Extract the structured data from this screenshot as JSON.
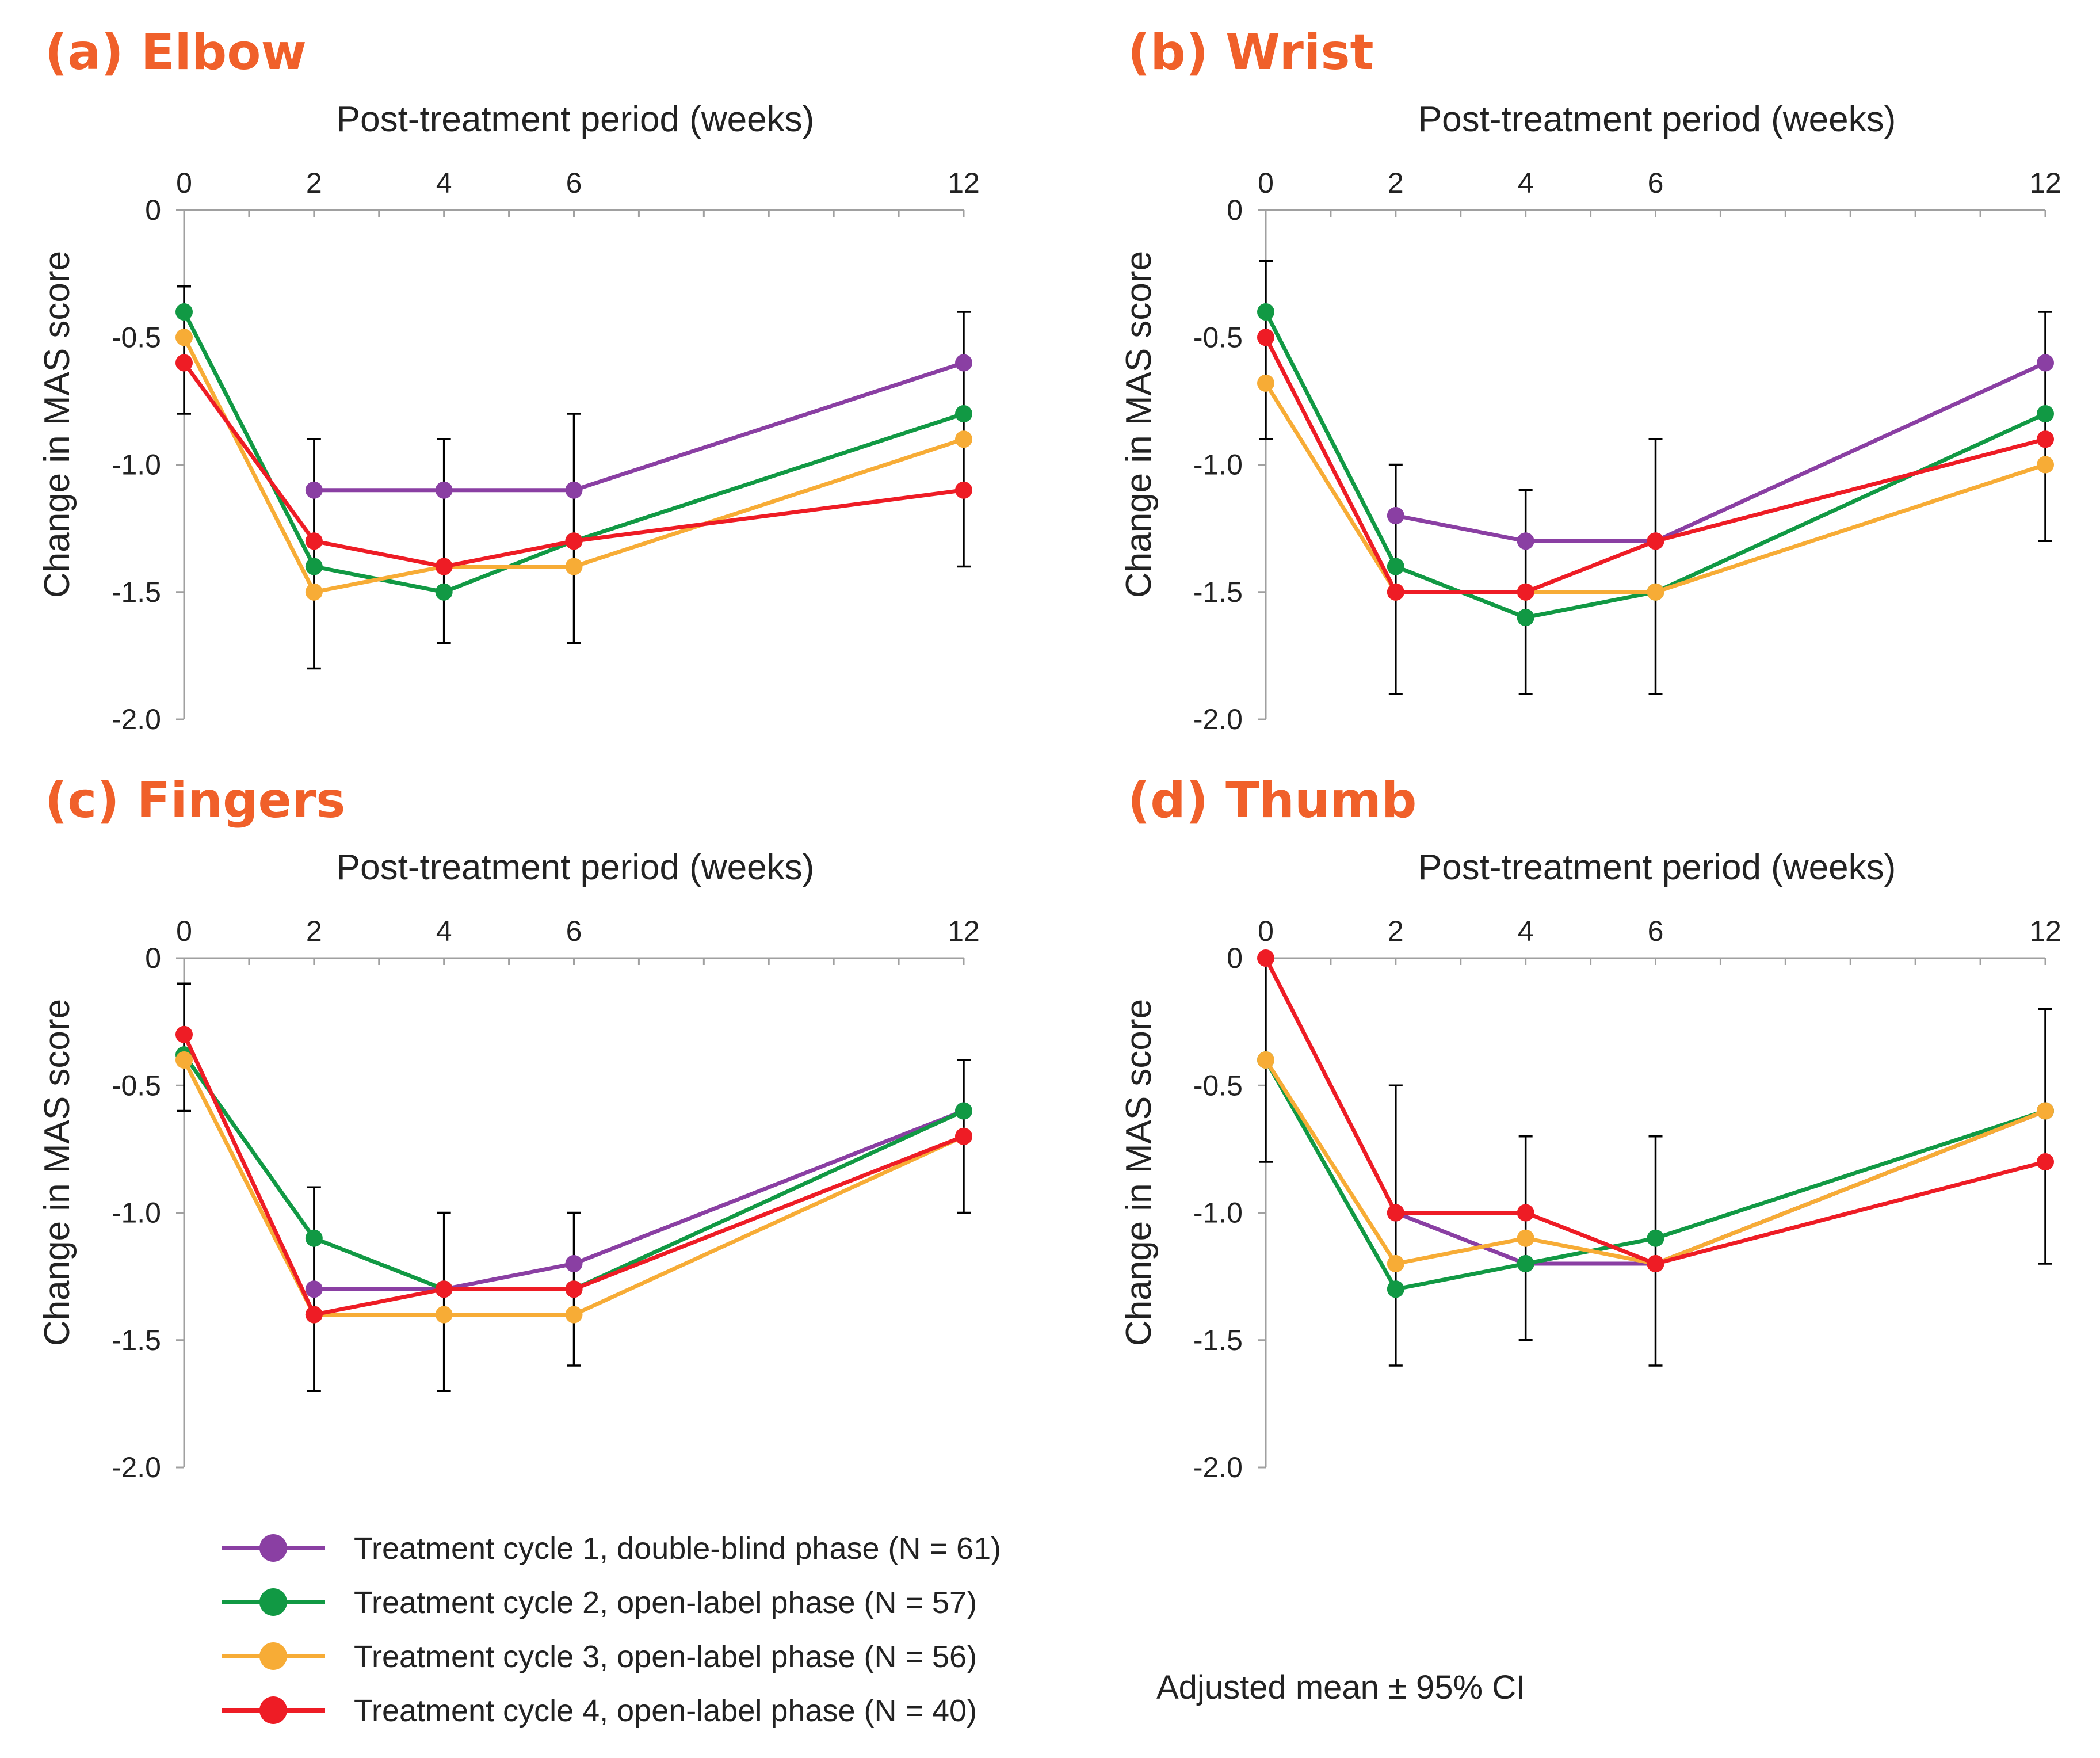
{
  "chart_data": {
    "type": "line",
    "x_title": "Post-treatment period (weeks)",
    "y_title": "Change in MAS score",
    "x_ticks": [
      0,
      2,
      4,
      6,
      12
    ],
    "y_ticks": [
      0,
      -0.5,
      -1.0,
      -1.5,
      -2.0
    ],
    "y_tick_labels": [
      "0",
      "-0.5",
      "-1.0",
      "-1.5",
      "-2.0"
    ],
    "ylim": [
      -2.0,
      0
    ],
    "xlim": [
      0,
      12
    ],
    "note": "Adjusted mean ± 95% CI",
    "series_meta": [
      {
        "name": "Treatment cycle 1, double-blind phase (N = 61)",
        "color": "#8a3fa3"
      },
      {
        "name": "Treatment cycle 2, open-label phase (N = 57)",
        "color": "#119944"
      },
      {
        "name": "Treatment cycle 3, open-label phase (N = 56)",
        "color": "#f7ac36"
      },
      {
        "name": "Treatment cycle 4, open-label phase (N = 40)",
        "color": "#ee1c25"
      }
    ],
    "panels": [
      {
        "title": "(a) Elbow",
        "series": [
          {
            "x": [
              2,
              4,
              6,
              12
            ],
            "y": [
              -1.1,
              -1.1,
              -1.1,
              -0.6
            ]
          },
          {
            "x": [
              0,
              2,
              4,
              6,
              12
            ],
            "y": [
              -0.4,
              -1.4,
              -1.5,
              -1.3,
              -0.8
            ]
          },
          {
            "x": [
              0,
              2,
              4,
              6,
              12
            ],
            "y": [
              -0.5,
              -1.5,
              -1.4,
              -1.4,
              -0.9
            ]
          },
          {
            "x": [
              0,
              2,
              4,
              6,
              12
            ],
            "y": [
              -0.6,
              -1.3,
              -1.4,
              -1.3,
              -1.1
            ]
          }
        ],
        "error_bars": [
          {
            "x": 0,
            "lo": -0.8,
            "hi": -0.3
          },
          {
            "x": 2,
            "lo": -1.8,
            "hi": -0.9
          },
          {
            "x": 4,
            "lo": -1.7,
            "hi": -0.9
          },
          {
            "x": 6,
            "lo": -1.7,
            "hi": -0.8
          },
          {
            "x": 12,
            "lo": -1.4,
            "hi": -0.4
          }
        ]
      },
      {
        "title": "(b) Wrist",
        "series": [
          {
            "x": [
              2,
              4,
              6,
              12
            ],
            "y": [
              -1.2,
              -1.3,
              -1.3,
              -0.6
            ]
          },
          {
            "x": [
              0,
              2,
              4,
              6,
              12
            ],
            "y": [
              -0.4,
              -1.4,
              -1.6,
              -1.5,
              -0.8
            ]
          },
          {
            "x": [
              0,
              2,
              4,
              6,
              12
            ],
            "y": [
              -0.68,
              -1.5,
              -1.5,
              -1.5,
              -1.0
            ]
          },
          {
            "x": [
              0,
              2,
              4,
              6,
              12
            ],
            "y": [
              -0.5,
              -1.5,
              -1.5,
              -1.3,
              -0.9
            ]
          }
        ],
        "error_bars": [
          {
            "x": 0,
            "lo": -0.9,
            "hi": -0.2
          },
          {
            "x": 2,
            "lo": -1.9,
            "hi": -1.0
          },
          {
            "x": 4,
            "lo": -1.9,
            "hi": -1.1
          },
          {
            "x": 6,
            "lo": -1.9,
            "hi": -0.9
          },
          {
            "x": 12,
            "lo": -1.3,
            "hi": -0.4
          }
        ]
      },
      {
        "title": "(c) Fingers",
        "series": [
          {
            "x": [
              2,
              4,
              6,
              12
            ],
            "y": [
              -1.3,
              -1.3,
              -1.2,
              -0.6
            ]
          },
          {
            "x": [
              0,
              2,
              4,
              6,
              12
            ],
            "y": [
              -0.38,
              -1.1,
              -1.3,
              -1.3,
              -0.6
            ]
          },
          {
            "x": [
              0,
              2,
              4,
              6,
              12
            ],
            "y": [
              -0.4,
              -1.4,
              -1.4,
              -1.4,
              -0.7
            ]
          },
          {
            "x": [
              0,
              2,
              4,
              6,
              12
            ],
            "y": [
              -0.3,
              -1.4,
              -1.3,
              -1.3,
              -0.7
            ]
          }
        ],
        "error_bars": [
          {
            "x": 0,
            "lo": -0.6,
            "hi": -0.1
          },
          {
            "x": 2,
            "lo": -1.7,
            "hi": -0.9
          },
          {
            "x": 4,
            "lo": -1.7,
            "hi": -1.0
          },
          {
            "x": 6,
            "lo": -1.6,
            "hi": -1.0
          },
          {
            "x": 12,
            "lo": -1.0,
            "hi": -0.4
          }
        ]
      },
      {
        "title": "(d) Thumb",
        "series": [
          {
            "x": [
              2,
              4,
              6,
              12
            ],
            "y": [
              -1.0,
              -1.2,
              -1.2,
              -0.6
            ]
          },
          {
            "x": [
              0,
              2,
              4,
              6,
              12
            ],
            "y": [
              -0.4,
              -1.3,
              -1.2,
              -1.1,
              -0.6
            ]
          },
          {
            "x": [
              0,
              2,
              4,
              6,
              12
            ],
            "y": [
              -0.4,
              -1.2,
              -1.1,
              -1.2,
              -0.6
            ]
          },
          {
            "x": [
              0,
              2,
              4,
              6,
              12
            ],
            "y": [
              0.0,
              -1.0,
              -1.0,
              -1.2,
              -0.8
            ]
          }
        ],
        "error_bars": [
          {
            "x": 0,
            "lo": -0.8,
            "hi": 0.0
          },
          {
            "x": 2,
            "lo": -1.6,
            "hi": -0.5
          },
          {
            "x": 4,
            "lo": -1.5,
            "hi": -0.7
          },
          {
            "x": 6,
            "lo": -1.6,
            "hi": -0.7
          },
          {
            "x": 12,
            "lo": -1.2,
            "hi": -0.2
          }
        ]
      }
    ]
  }
}
